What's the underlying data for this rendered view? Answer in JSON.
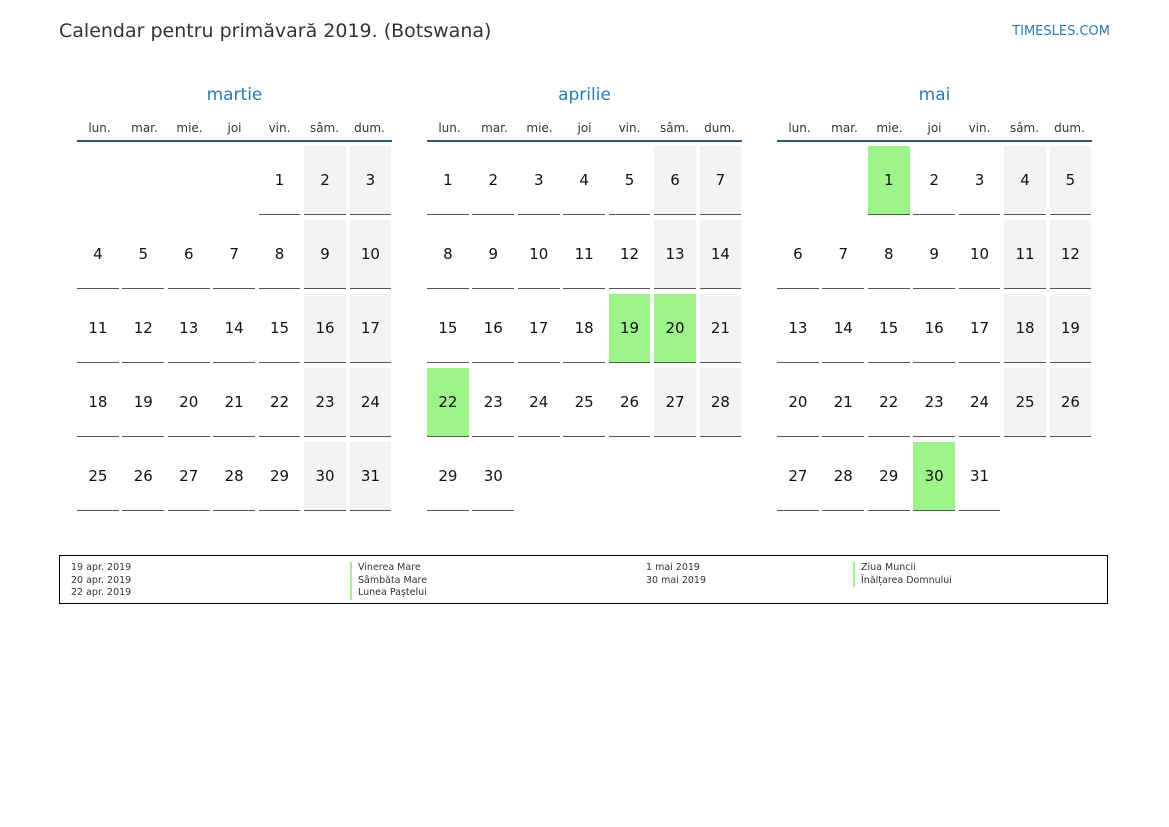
{
  "header": {
    "title": "Calendar pentru primăvară 2019. (Botswana)",
    "site": "TIMESLES.COM"
  },
  "colors": {
    "accent": "#2a7ab9",
    "holiday": "#9df58a",
    "weekend": "#f3f3f3",
    "rule": "#34557a"
  },
  "weekdays": [
    "lun.",
    "mar.",
    "mie.",
    "joi",
    "vin.",
    "sâm.",
    "dum."
  ],
  "months": [
    {
      "name": "martie",
      "first_weekday": 4,
      "days": 31,
      "holidays": []
    },
    {
      "name": "aprilie",
      "first_weekday": 0,
      "days": 30,
      "holidays": [
        19,
        20,
        22
      ]
    },
    {
      "name": "mai",
      "first_weekday": 2,
      "days": 31,
      "holidays": [
        1,
        30
      ]
    }
  ],
  "legend": {
    "left": [
      {
        "date": "19 apr. 2019",
        "name": "Vinerea Mare"
      },
      {
        "date": "20 apr. 2019",
        "name": "Sâmbăta Mare"
      },
      {
        "date": "22 apr. 2019",
        "name": "Lunea Paștelui"
      }
    ],
    "right": [
      {
        "date": "1 mai 2019",
        "name": "Ziua Muncii"
      },
      {
        "date": "30 mai 2019",
        "name": "Înălțarea Domnului"
      }
    ]
  }
}
